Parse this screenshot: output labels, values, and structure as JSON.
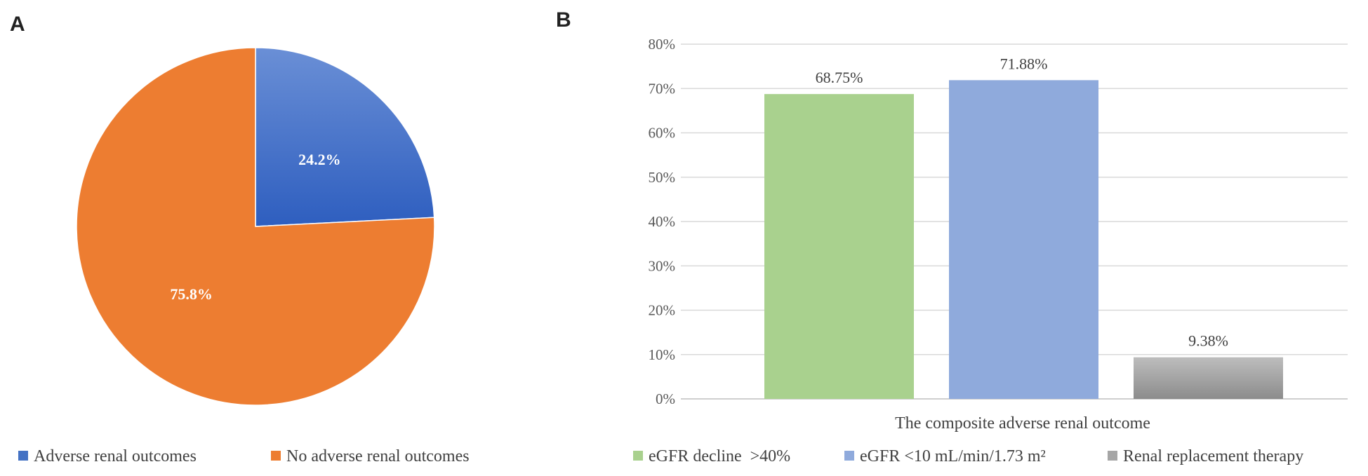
{
  "chart_data": [
    {
      "panel": "A",
      "type": "pie",
      "title": "",
      "slices": [
        {
          "name": "Adverse renal outcomes",
          "value": 24.2,
          "label": "24.2%",
          "color": "#4472C4"
        },
        {
          "name": "No adverse renal outcomes",
          "value": 75.8,
          "label": "75.8%",
          "color": "#ED7D31"
        }
      ],
      "legend_position": "bottom"
    },
    {
      "panel": "B",
      "type": "bar",
      "title": "",
      "xlabel": "The composite adverse renal outcome",
      "ylabel": "",
      "ylim": [
        0,
        80
      ],
      "yticks": [
        "0%",
        "10%",
        "20%",
        "30%",
        "40%",
        "50%",
        "60%",
        "70%",
        "80%"
      ],
      "grid": true,
      "series": [
        {
          "name": "eGFR decline  >40%",
          "value": 68.75,
          "label": "68.75%",
          "color": "#A9D18E"
        },
        {
          "name": "eGFR <10 mL/min/1.73 m²",
          "value": 71.88,
          "label": "71.88%",
          "color": "#8FAADC"
        },
        {
          "name": "Renal replacement therapy",
          "value": 9.38,
          "label": "9.38%",
          "color": "#A6A6A6"
        }
      ],
      "legend_position": "bottom"
    }
  ]
}
